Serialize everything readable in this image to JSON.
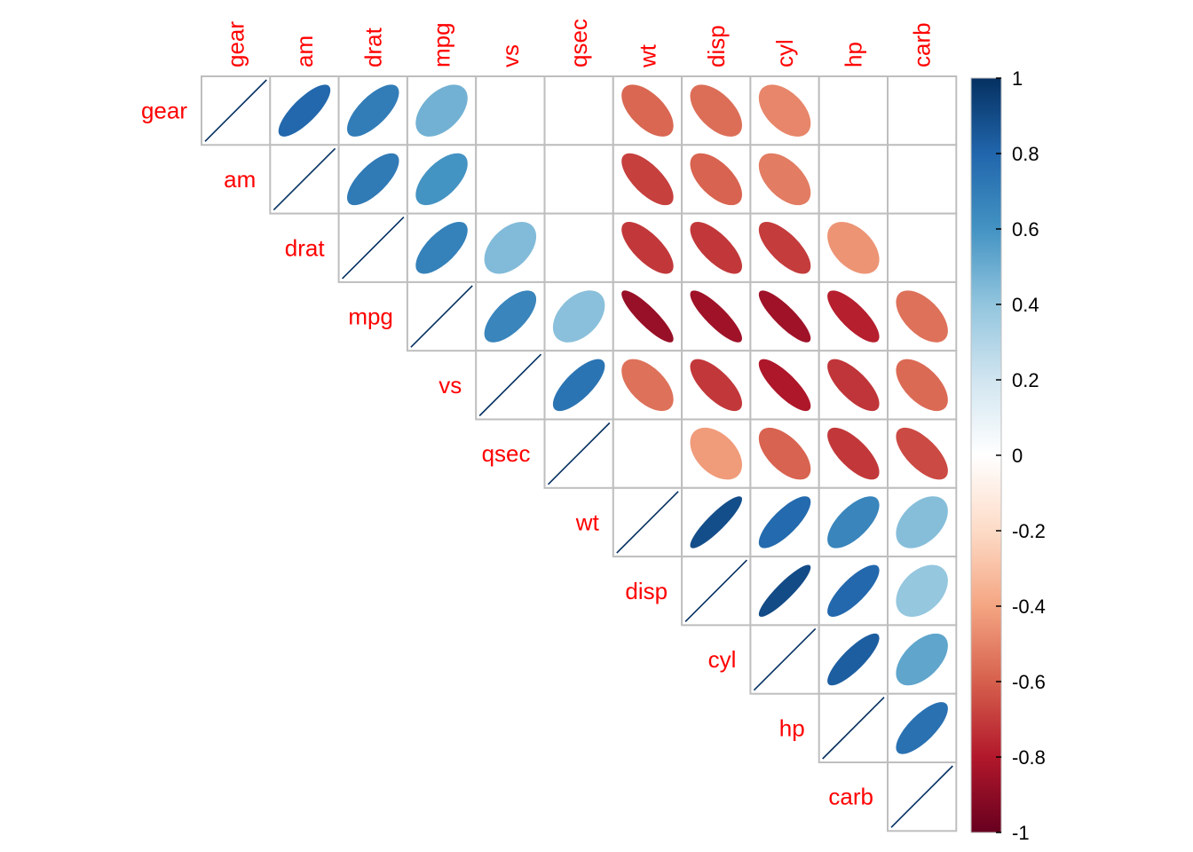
{
  "chart_data": {
    "type": "heatmap",
    "subtype": "correlation-matrix-upper-triangle-ellipse",
    "title": "",
    "variables": [
      "gear",
      "am",
      "drat",
      "mpg",
      "vs",
      "qsec",
      "wt",
      "disp",
      "cyl",
      "hp",
      "carb"
    ],
    "upper_triangle": [
      [
        1,
        0.79,
        0.7,
        0.48,
        null,
        null,
        -0.58,
        -0.56,
        -0.49,
        null,
        null
      ],
      [
        null,
        1,
        0.71,
        0.6,
        null,
        null,
        -0.69,
        -0.59,
        -0.52,
        null,
        null
      ],
      [
        null,
        null,
        1,
        0.68,
        0.44,
        null,
        -0.71,
        -0.71,
        -0.7,
        -0.45,
        null
      ],
      [
        null,
        null,
        null,
        1,
        0.66,
        0.42,
        -0.87,
        -0.85,
        -0.85,
        -0.78,
        -0.55
      ],
      [
        null,
        null,
        null,
        null,
        1,
        0.74,
        -0.55,
        -0.71,
        -0.81,
        -0.72,
        -0.57
      ],
      [
        null,
        null,
        null,
        null,
        null,
        1,
        null,
        -0.43,
        -0.59,
        -0.71,
        -0.66
      ],
      [
        null,
        null,
        null,
        null,
        null,
        null,
        1,
        0.89,
        0.78,
        0.66,
        0.43
      ],
      [
        null,
        null,
        null,
        null,
        null,
        null,
        null,
        1,
        0.9,
        0.79,
        0.39
      ],
      [
        null,
        null,
        null,
        null,
        null,
        null,
        null,
        null,
        1,
        0.83,
        0.53
      ],
      [
        null,
        null,
        null,
        null,
        null,
        null,
        null,
        null,
        null,
        1,
        0.75
      ],
      [
        null,
        null,
        null,
        null,
        null,
        null,
        null,
        null,
        null,
        null,
        1
      ]
    ],
    "colorbar": {
      "ticks": [
        "1",
        "0.8",
        "0.6",
        "0.4",
        "0.2",
        "0",
        "-0.2",
        "-0.4",
        "-0.6",
        "-0.8",
        "-1"
      ],
      "range": [
        -1,
        1
      ],
      "palette": [
        "#67001F",
        "#B2182B",
        "#D6604D",
        "#F4A582",
        "#FDDBC7",
        "#FFFFFF",
        "#D1E5F0",
        "#92C5DE",
        "#4393C3",
        "#2166AC",
        "#053061"
      ]
    },
    "label_color": "#FF0000",
    "grid_color": "#BEBEBE"
  }
}
